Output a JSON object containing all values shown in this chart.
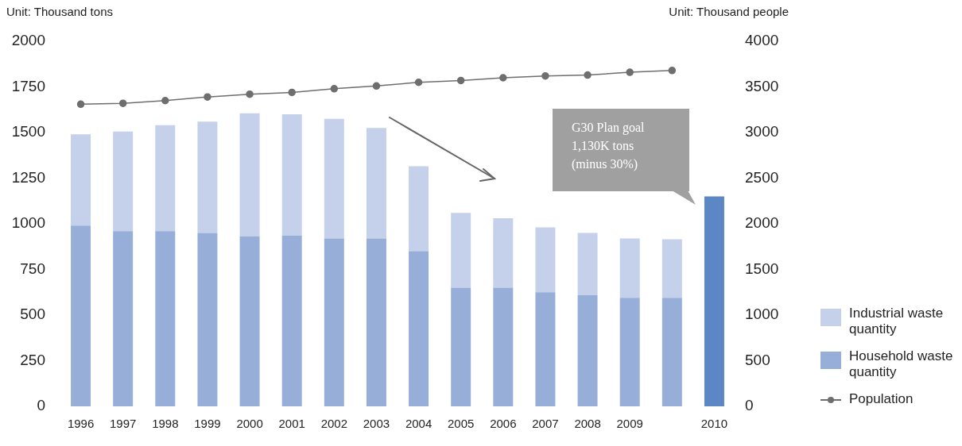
{
  "chart_data": {
    "type": "bar",
    "stacked": true,
    "ylabel": "Unit: Thousand tons",
    "y2label": "Unit: Thousand people",
    "categories": [
      "1996",
      "1997",
      "1998",
      "1999",
      "2000",
      "2001",
      "2002",
      "2003",
      "2004",
      "2005",
      "2006",
      "2007",
      "2008",
      "2009",
      null,
      "2010"
    ],
    "series": [
      {
        "name": "Household waste quantity",
        "color": "#97aed9",
        "values": [
          990,
          960,
          960,
          950,
          930,
          935,
          920,
          920,
          850,
          650,
          650,
          625,
          610,
          595,
          595,
          null
        ]
      },
      {
        "name": "Industrial waste quantity",
        "color": "#c5d0eb",
        "values": [
          500,
          545,
          580,
          610,
          675,
          665,
          655,
          605,
          465,
          410,
          380,
          355,
          340,
          325,
          320,
          null
        ]
      },
      {
        "color": "#5b87c5",
        "values": [
          null,
          null,
          null,
          null,
          null,
          null,
          null,
          null,
          null,
          null,
          null,
          null,
          null,
          null,
          null,
          1150
        ]
      },
      {
        "name": "Population",
        "color": "#6e6e6e",
        "type": "line",
        "axis": "y2",
        "values": [
          3310,
          3320,
          3350,
          3390,
          3420,
          3440,
          3480,
          3510,
          3550,
          3570,
          3600,
          3620,
          3630,
          3660,
          3680,
          null
        ]
      }
    ],
    "ylim": [
      0,
      2000
    ],
    "yticks": [
      0,
      250,
      500,
      750,
      1000,
      1250,
      1500,
      1750,
      2000
    ],
    "y2lim": [
      0,
      4000
    ],
    "y2ticks": [
      0,
      500,
      1000,
      1500,
      2000,
      2500,
      3000,
      3500,
      4000
    ],
    "grid": false,
    "legend": "right",
    "marker": "circle",
    "line_style": "solid",
    "annotations": [
      "G30 Plan goal 1,130K tons (minus 30%)"
    ]
  }
}
